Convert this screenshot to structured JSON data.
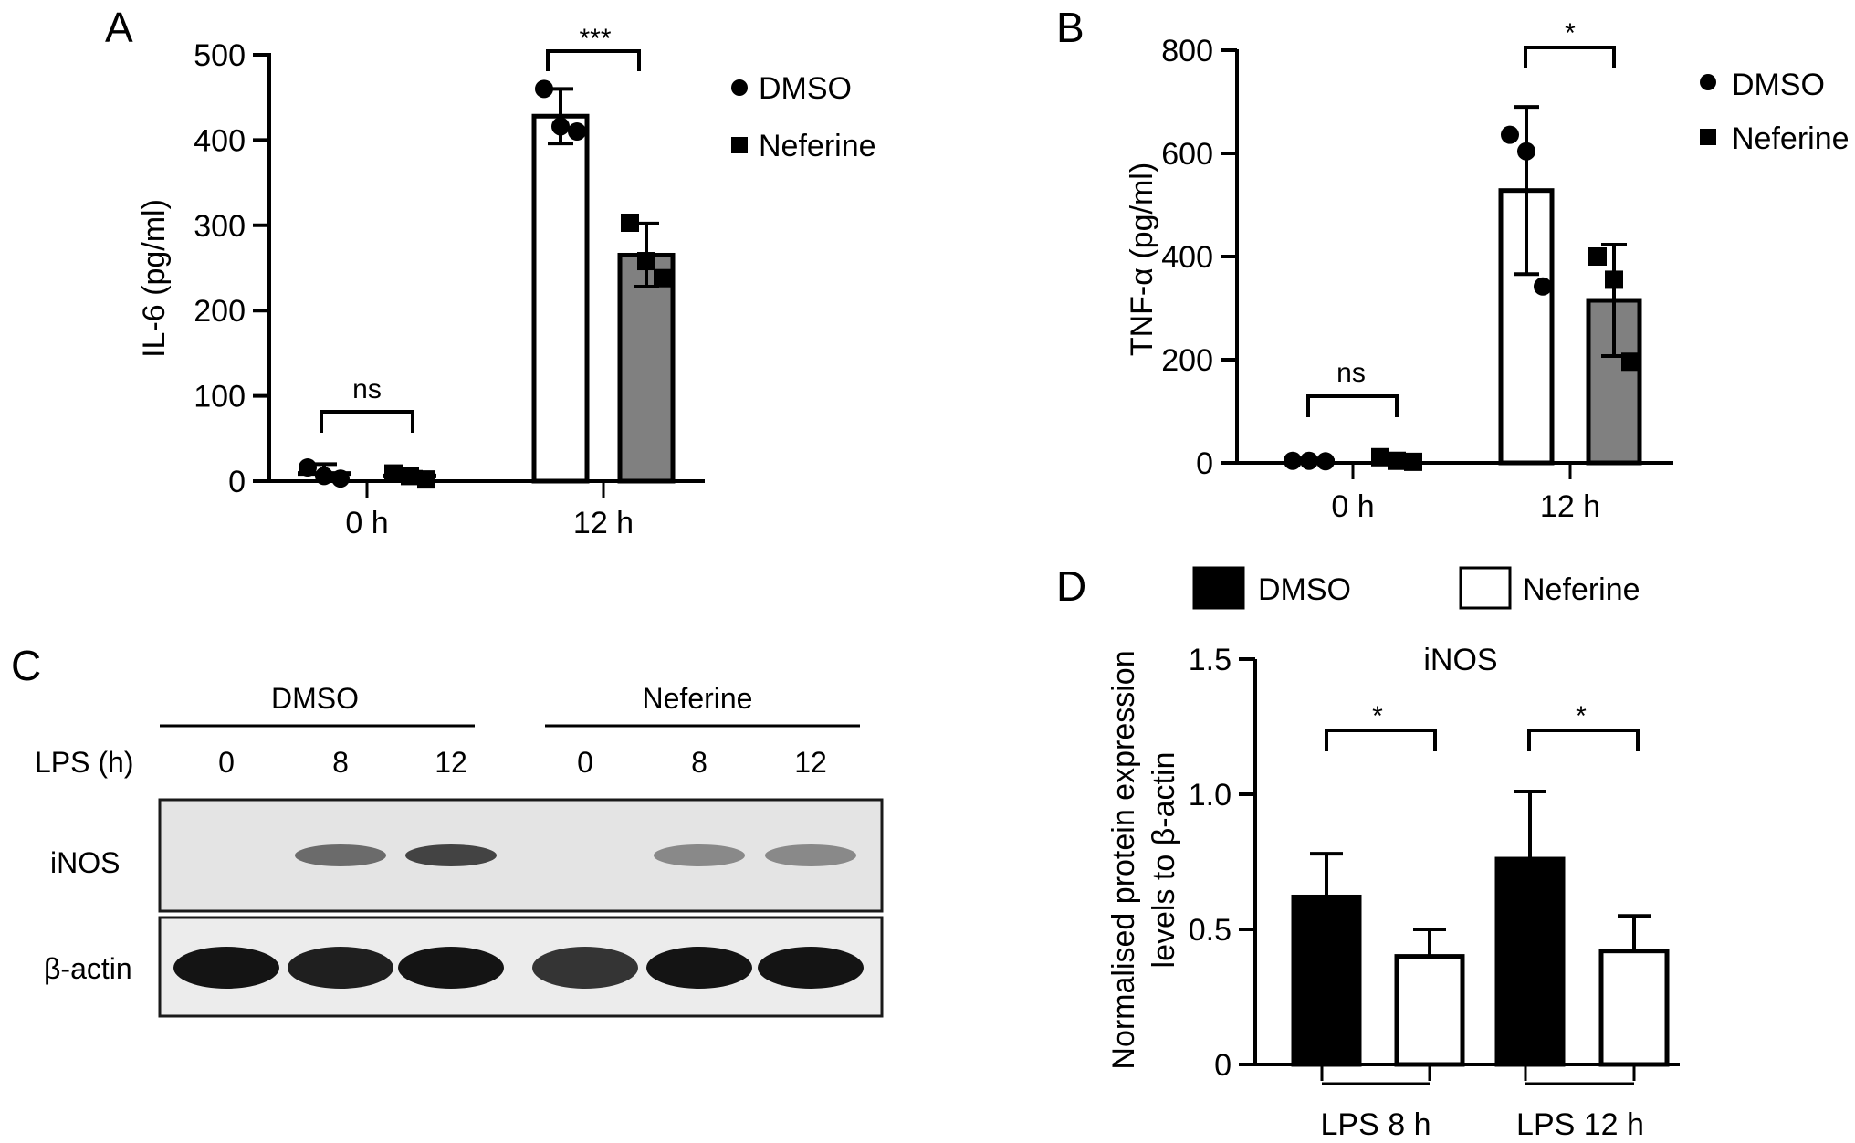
{
  "panels": {
    "A": {
      "label": "A",
      "chart_data": {
        "type": "bar",
        "categories": [
          "0 h",
          "12 h"
        ],
        "ylabel": "IL-6 (pg/ml)",
        "ylim": [
          0,
          500
        ],
        "yticks": [
          0,
          100,
          200,
          300,
          400,
          500
        ],
        "series": [
          {
            "name": "DMSO",
            "marker": "circle",
            "fill": "#ffffff",
            "values": [
              9,
              428
            ],
            "sd": [
              11,
              32
            ],
            "points": [
              [
                16,
                6,
                3
              ],
              [
                460,
                416,
                410
              ]
            ]
          },
          {
            "name": "Neferine",
            "marker": "square",
            "fill": "#808080",
            "values": [
              6,
              265
            ],
            "sd": [
              5,
              37
            ],
            "points": [
              [
                9,
                6,
                2
              ],
              [
                303,
                258,
                238
              ]
            ]
          }
        ],
        "significance": [
          "ns",
          "***"
        ]
      }
    },
    "B": {
      "label": "B",
      "chart_data": {
        "type": "bar",
        "categories": [
          "0 h",
          "12 h"
        ],
        "ylabel": "TNF-α (pg/ml)",
        "ylim": [
          0,
          800
        ],
        "yticks": [
          0,
          200,
          400,
          600,
          800
        ],
        "series": [
          {
            "name": "DMSO",
            "marker": "circle",
            "fill": "#ffffff",
            "values": [
              4,
              528
            ],
            "sd": [
              4,
              162
            ],
            "points": [
              [
                4,
                4,
                3
              ],
              [
                636,
                604,
                342
              ]
            ]
          },
          {
            "name": "Neferine",
            "marker": "square",
            "fill": "#808080",
            "values": [
              5,
              315
            ],
            "sd": [
              4,
              108
            ],
            "points": [
              [
                11,
                4,
                2
              ],
              [
                400,
                355,
                196
              ]
            ]
          }
        ],
        "significance": [
          "ns",
          "*"
        ]
      }
    },
    "C": {
      "label": "C",
      "groups": [
        "DMSO",
        "Neferine"
      ],
      "lps_label": "LPS (h)",
      "timepoints": [
        "0",
        "8",
        "12",
        "0",
        "8",
        "12"
      ],
      "rows": [
        "iNOS",
        "β-actin"
      ],
      "band_intensity": {
        "iNOS": [
          0,
          0.6,
          0.8,
          0,
          0.45,
          0.45
        ],
        "β-actin": [
          1,
          0.95,
          1,
          0.85,
          1,
          1
        ]
      }
    },
    "D": {
      "label": "D",
      "chart_data": {
        "type": "bar",
        "title": "iNOS",
        "categories": [
          "LPS 8 h",
          "LPS 12 h"
        ],
        "ylabel": "Normalised protein expression levels to β-actin",
        "ylabel_lines": [
          "Normalised protein expression",
          "levels to β-actin"
        ],
        "ylim": [
          0,
          1.5
        ],
        "yticks": [
          "0",
          "0.5",
          "1.0",
          "1.5"
        ],
        "series": [
          {
            "name": "DMSO",
            "fill": "#000000",
            "values": [
              0.62,
              0.76
            ],
            "sd": [
              0.16,
              0.25
            ]
          },
          {
            "name": "Neferine",
            "fill": "#ffffff",
            "values": [
              0.4,
              0.42
            ],
            "sd": [
              0.1,
              0.13
            ]
          }
        ],
        "significance": [
          "*",
          "*"
        ]
      }
    }
  }
}
